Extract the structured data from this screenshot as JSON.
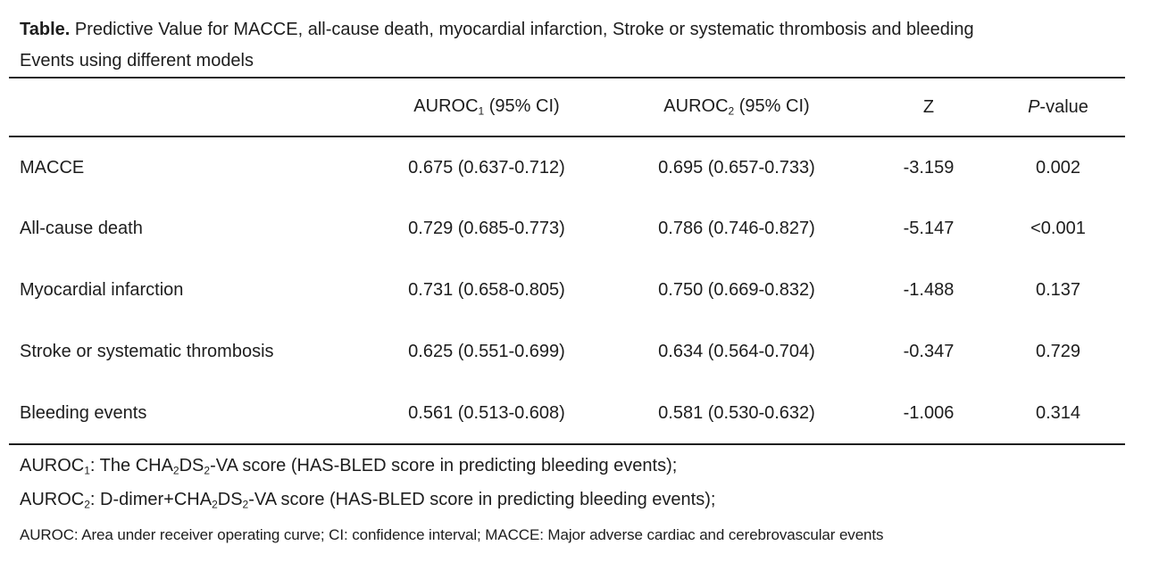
{
  "caption": {
    "label": "Table.",
    "line1": " Predictive Value for MACCE, all-cause death, myocardial infarction, Stroke or systematic thrombosis and bleeding",
    "line2": "Events using different models"
  },
  "table": {
    "header": {
      "outcome": "",
      "auroc1": [
        {
          "t": "AUROC"
        },
        {
          "t": "1",
          "sub": true
        },
        {
          "t": " (95% CI)"
        }
      ],
      "auroc2": [
        {
          "t": "AUROC"
        },
        {
          "t": "2",
          "sub": true
        },
        {
          "t": " (95% CI)"
        }
      ],
      "z": "Z",
      "p": [
        {
          "t": "P",
          "italic": true
        },
        {
          "t": "-value"
        }
      ]
    },
    "rows": [
      {
        "label": "MACCE",
        "auroc1": "0.675 (0.637-0.712)",
        "auroc2": "0.695 (0.657-0.733)",
        "z": "-3.159",
        "p": "0.002"
      },
      {
        "label": "All-cause death",
        "auroc1": "0.729 (0.685-0.773)",
        "auroc2": "0.786 (0.746-0.827)",
        "z": "-5.147",
        "p": "<0.001"
      },
      {
        "label": "Myocardial infarction",
        "auroc1": "0.731 (0.658-0.805)",
        "auroc2": "0.750 (0.669-0.832)",
        "z": "-1.488",
        "p": "0.137"
      },
      {
        "label": "Stroke or systematic thrombosis",
        "auroc1": "0.625 (0.551-0.699)",
        "auroc2": "0.634 (0.564-0.704)",
        "z": "-0.347",
        "p": "0.729"
      },
      {
        "label": "Bleeding events",
        "auroc1": "0.561 (0.513-0.608)",
        "auroc2": "0.581 (0.530-0.632)",
        "z": "-1.006",
        "p": "0.314"
      }
    ]
  },
  "footnotes": {
    "fn1": [
      {
        "t": "AUROC"
      },
      {
        "t": "1",
        "sub": true
      },
      {
        "t": ": The CHA"
      },
      {
        "t": "2",
        "sub": true
      },
      {
        "t": "DS"
      },
      {
        "t": "2",
        "sub": true
      },
      {
        "t": "-VA score (HAS-BLED score in predicting bleeding events);"
      }
    ],
    "fn2": [
      {
        "t": "AUROC"
      },
      {
        "t": "2",
        "sub": true
      },
      {
        "t": ": D-dimer+CHA"
      },
      {
        "t": "2",
        "sub": true
      },
      {
        "t": "DS"
      },
      {
        "t": "2",
        "sub": true
      },
      {
        "t": "-VA score (HAS-BLED score in predicting bleeding events);"
      }
    ],
    "fn3": [
      {
        "t": "AUROC: Area under receiver operating curve; CI: confidence interval; MACCE: Major adverse cardiac and cerebrovascular events"
      }
    ]
  },
  "colors": {
    "text": "#1d1d1d",
    "rule": "#1c1c1c",
    "background": "#ffffff"
  },
  "chart_data": {
    "type": "table",
    "title": "Table. Predictive Value for MACCE, all-cause death, myocardial infarction, Stroke or systematic thrombosis and bleeding Events using different models",
    "columns": [
      "Outcome",
      "AUROC1 (95% CI)",
      "AUROC2 (95% CI)",
      "Z",
      "P-value"
    ],
    "rows": [
      [
        "MACCE",
        "0.675 (0.637-0.712)",
        "0.695 (0.657-0.733)",
        "-3.159",
        "0.002"
      ],
      [
        "All-cause death",
        "0.729 (0.685-0.773)",
        "0.786 (0.746-0.827)",
        "-5.147",
        "<0.001"
      ],
      [
        "Myocardial infarction",
        "0.731 (0.658-0.805)",
        "0.750 (0.669-0.832)",
        "-1.488",
        "0.137"
      ],
      [
        "Stroke or systematic thrombosis",
        "0.625 (0.551-0.699)",
        "0.634 (0.564-0.704)",
        "-0.347",
        "0.729"
      ],
      [
        "Bleeding events",
        "0.561 (0.513-0.608)",
        "0.581 (0.530-0.632)",
        "-1.006",
        "0.314"
      ]
    ],
    "notes": [
      "AUROC1: The CHA2DS2-VA score (HAS-BLED score in predicting bleeding events);",
      "AUROC2: D-dimer+CHA2DS2-VA score (HAS-BLED score in predicting bleeding events);",
      "AUROC: Area under receiver operating curve; CI: confidence interval; MACCE: Major adverse cardiac and cerebrovascular events"
    ]
  }
}
